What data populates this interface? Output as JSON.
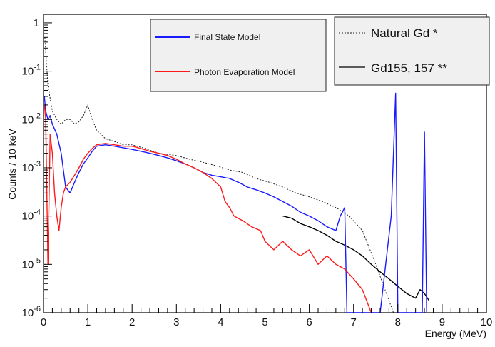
{
  "chart_data": {
    "type": "line",
    "xlabel": "Energy (MeV)",
    "ylabel": "Counts / 10 keV",
    "xlim": [
      0,
      10
    ],
    "ylim": [
      1e-06,
      1.5
    ],
    "yscale": "log",
    "x_ticks": [
      "0",
      "1",
      "2",
      "3",
      "4",
      "5",
      "6",
      "7",
      "8",
      "9",
      "10"
    ],
    "y_ticks": [
      {
        "base": "1",
        "exp": ""
      },
      {
        "base": "10",
        "exp": "-1"
      },
      {
        "base": "10",
        "exp": "-2"
      },
      {
        "base": "10",
        "exp": "-3"
      },
      {
        "base": "10",
        "exp": "-4"
      },
      {
        "base": "10",
        "exp": "-5"
      },
      {
        "base": "10",
        "exp": "-6"
      }
    ],
    "grid": false,
    "legend_left": {
      "placement": "top-center",
      "entries": [
        {
          "label": "Final State Model",
          "color": "#1a1aff"
        },
        {
          "label": "Photon Evaporation Model",
          "color": "#ff1a1a"
        }
      ]
    },
    "legend_right": {
      "placement": "top-right",
      "entries": [
        {
          "label": "Natural Gd *",
          "style": "dotted",
          "color": "#222222"
        },
        {
          "label": "Gd155, 157 **",
          "style": "solid",
          "color": "#000000"
        }
      ]
    },
    "series": [
      {
        "key": "natural_gd",
        "style": "dotted",
        "color": "#222222",
        "x": [
          0.03,
          0.1,
          0.2,
          0.3,
          0.4,
          0.5,
          0.6,
          0.7,
          0.8,
          0.9,
          1.0,
          1.1,
          1.2,
          1.4,
          1.6,
          1.8,
          2.0,
          2.3,
          2.6,
          3.0,
          3.3,
          3.6,
          3.9,
          4.2,
          4.5,
          4.8,
          5.1,
          5.4,
          5.7,
          6.0,
          6.3,
          6.6,
          6.9,
          7.2,
          7.5,
          7.9
        ],
        "y": [
          0.5,
          0.05,
          0.015,
          0.01,
          0.008,
          0.01,
          0.01,
          0.008,
          0.009,
          0.012,
          0.02,
          0.01,
          0.006,
          0.004,
          0.0035,
          0.003,
          0.003,
          0.0025,
          0.002,
          0.0018,
          0.0015,
          0.0013,
          0.0011,
          0.0009,
          0.0008,
          0.0006,
          0.0005,
          0.0004,
          0.0003,
          0.00025,
          0.0002,
          0.00015,
          0.0001,
          5e-05,
          1e-05,
          1e-06
        ]
      },
      {
        "key": "gd155_157",
        "style": "solid",
        "color": "#000000",
        "x": [
          5.4,
          5.6,
          5.8,
          6.0,
          6.2,
          6.4,
          6.6,
          6.8,
          7.0,
          7.2,
          7.4,
          7.6,
          7.8,
          8.0,
          8.2,
          8.4,
          8.5,
          8.6,
          8.7
        ],
        "y": [
          0.0001,
          9e-05,
          7e-05,
          6e-05,
          5e-05,
          4e-05,
          3e-05,
          2.5e-05,
          2e-05,
          1.5e-05,
          1e-05,
          7e-06,
          5e-06,
          3.5e-06,
          2.5e-06,
          2e-06,
          3e-06,
          2.5e-06,
          1.8e-06
        ]
      },
      {
        "key": "final_state",
        "style": "solid",
        "color": "#1a1aff",
        "x": [
          0.02,
          0.05,
          0.1,
          0.15,
          0.2,
          0.3,
          0.4,
          0.5,
          0.6,
          0.7,
          0.8,
          0.9,
          1.0,
          1.1,
          1.2,
          1.4,
          1.6,
          1.8,
          2.0,
          2.2,
          2.4,
          2.6,
          2.8,
          3.0,
          3.2,
          3.4,
          3.6,
          3.8,
          4.0,
          4.2,
          4.4,
          4.6,
          4.8,
          5.0,
          5.2,
          5.4,
          5.6,
          5.8,
          6.0,
          6.2,
          6.4,
          6.6,
          6.7,
          6.8,
          6.85,
          6.9,
          7.2,
          7.6,
          7.85,
          7.95,
          8.0,
          8.2,
          8.55,
          8.6,
          8.65
        ],
        "y": [
          0.03,
          0.015,
          0.01,
          0.012,
          0.008,
          0.005,
          0.002,
          0.0004,
          0.0003,
          0.0005,
          0.0008,
          0.0012,
          0.0016,
          0.0022,
          0.0028,
          0.003,
          0.0028,
          0.0026,
          0.0024,
          0.0022,
          0.002,
          0.0018,
          0.0016,
          0.0014,
          0.0012,
          0.001,
          0.0008,
          0.0007,
          0.00065,
          0.0006,
          0.0005,
          0.0004,
          0.00035,
          0.0003,
          0.00025,
          0.0002,
          0.00016,
          0.00012,
          0.0001,
          8e-05,
          6e-05,
          5e-05,
          0.0001,
          0.00015,
          1e-06,
          1e-06,
          1e-06,
          1e-06,
          0.0001,
          0.035,
          1e-06,
          1e-06,
          1e-06,
          0.0055,
          1e-06
        ]
      },
      {
        "key": "photon_evaporation",
        "style": "solid",
        "color": "#ff1a1a",
        "x": [
          0.02,
          0.05,
          0.1,
          0.15,
          0.2,
          0.25,
          0.3,
          0.35,
          0.4,
          0.45,
          0.5,
          0.6,
          0.7,
          0.8,
          0.9,
          1.0,
          1.1,
          1.2,
          1.4,
          1.6,
          1.8,
          2.0,
          2.2,
          2.4,
          2.6,
          2.8,
          3.0,
          3.2,
          3.4,
          3.6,
          3.8,
          4.0,
          4.1,
          4.2,
          4.3,
          4.5,
          4.7,
          4.9,
          5.0,
          5.2,
          5.4,
          5.6,
          5.8,
          6.0,
          6.2,
          6.4,
          6.6,
          6.8,
          7.0,
          7.2,
          7.4
        ],
        "y": [
          0.02,
          0.01,
          1e-05,
          0.005,
          0.002,
          0.0003,
          0.0001,
          5e-05,
          0.00015,
          0.0003,
          0.0004,
          0.0005,
          0.0007,
          0.001,
          0.0015,
          0.002,
          0.0025,
          0.003,
          0.0032,
          0.003,
          0.0028,
          0.0028,
          0.0025,
          0.0022,
          0.002,
          0.0018,
          0.0015,
          0.0012,
          0.001,
          0.0008,
          0.0006,
          0.0004,
          0.0002,
          0.00015,
          0.0001,
          8e-05,
          6e-05,
          5e-05,
          3e-05,
          2e-05,
          3e-05,
          2e-05,
          1.5e-05,
          2e-05,
          1e-05,
          1.5e-05,
          1e-05,
          8e-06,
          5e-06,
          3e-06,
          1e-06
        ]
      }
    ]
  }
}
